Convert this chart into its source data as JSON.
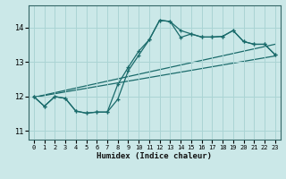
{
  "xlabel": "Humidex (Indice chaleur)",
  "x_ticks": [
    0,
    1,
    2,
    3,
    4,
    5,
    6,
    7,
    8,
    9,
    10,
    11,
    12,
    13,
    14,
    15,
    16,
    17,
    18,
    19,
    20,
    21,
    22,
    23
  ],
  "xlim": [
    -0.5,
    23.5
  ],
  "ylim": [
    10.75,
    14.65
  ],
  "yticks": [
    11,
    12,
    13,
    14
  ],
  "bg_color": "#cbe8e8",
  "grid_color": "#aad4d4",
  "line_color": "#1a6b6b",
  "line1_x": [
    0,
    1,
    2,
    3,
    4,
    5,
    6,
    7,
    8,
    9,
    10,
    11,
    12,
    13,
    14,
    15,
    16,
    17,
    18,
    19,
    20,
    21,
    22,
    23
  ],
  "line1_y": [
    12.0,
    11.72,
    12.0,
    11.95,
    11.58,
    11.52,
    11.55,
    11.55,
    11.92,
    12.75,
    13.2,
    13.65,
    14.22,
    14.18,
    13.92,
    13.82,
    13.73,
    13.73,
    13.75,
    13.92,
    13.6,
    13.52,
    13.52,
    13.22
  ],
  "line2_x": [
    0,
    1,
    2,
    3,
    4,
    5,
    6,
    7,
    8,
    9,
    10,
    11,
    12,
    13,
    14,
    15,
    16,
    17,
    18,
    19,
    20,
    21,
    22,
    23
  ],
  "line2_y": [
    12.0,
    11.72,
    12.0,
    11.95,
    11.58,
    11.52,
    11.55,
    11.55,
    12.35,
    12.85,
    13.32,
    13.65,
    14.22,
    14.18,
    13.72,
    13.82,
    13.73,
    13.73,
    13.75,
    13.92,
    13.6,
    13.52,
    13.52,
    13.22
  ],
  "line3_x": [
    0,
    23
  ],
  "line3_y": [
    11.98,
    13.18
  ],
  "line4_x": [
    0,
    23
  ],
  "line4_y": [
    11.98,
    13.52
  ]
}
